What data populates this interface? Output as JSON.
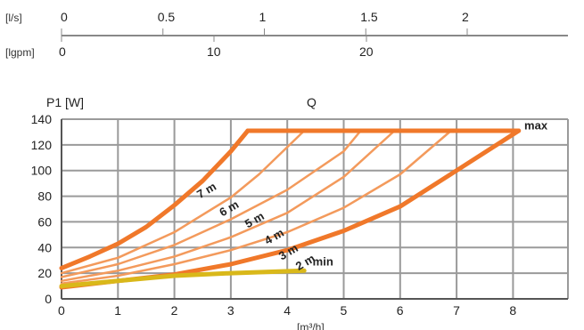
{
  "chart_data": {
    "type": "line",
    "top_scales": [
      {
        "unit": "[l/s]",
        "ticks": [
          0,
          0.5,
          1,
          1.5,
          2
        ],
        "tick_labels": [
          "0",
          "0.5",
          "1",
          "1.5",
          "2"
        ]
      },
      {
        "unit": "[lgpm]",
        "ticks": [
          0,
          10,
          20
        ],
        "tick_labels": [
          "0",
          "10",
          "20"
        ]
      }
    ],
    "ylabel": "P1 [W]",
    "xlabel_top": "Q",
    "xlabel_bottom": "[m³/h]",
    "xlim": [
      0,
      9
    ],
    "ylim": [
      0,
      140
    ],
    "x_ticks": [
      0,
      1,
      2,
      3,
      4,
      5,
      6,
      7,
      8
    ],
    "y_ticks": [
      0,
      20,
      40,
      60,
      80,
      100,
      120,
      140
    ],
    "grid": true,
    "colors": {
      "grid": "#9a9a9a",
      "curve_thick": "#f0782a",
      "curve_thin": "#f39a5c",
      "min_curve": "#d9b81a"
    },
    "series": [
      {
        "name": "7 m",
        "style": "thick",
        "label_xy": [
          2.45,
          78
        ],
        "x": [
          0,
          0.5,
          1,
          1.5,
          2,
          2.5,
          3,
          3.3
        ],
        "y": [
          24,
          33,
          43,
          56,
          73,
          92,
          115,
          131
        ]
      },
      {
        "name": "6 m",
        "style": "thin",
        "label_xy": [
          2.85,
          64
        ],
        "x": [
          0,
          1,
          2,
          3,
          3.5,
          4.3
        ],
        "y": [
          20,
          32,
          52,
          79,
          97,
          131
        ]
      },
      {
        "name": "5 m",
        "style": "thin",
        "label_xy": [
          3.3,
          55
        ],
        "x": [
          0,
          1,
          2,
          3,
          4,
          5,
          5.3
        ],
        "y": [
          17,
          27,
          42,
          62,
          85,
          115,
          131
        ]
      },
      {
        "name": "4 m",
        "style": "thin",
        "label_xy": [
          3.65,
          42
        ],
        "x": [
          0,
          1,
          2,
          3,
          4,
          5,
          5.9
        ],
        "y": [
          14,
          22,
          33,
          48,
          67,
          95,
          131
        ]
      },
      {
        "name": "3 m",
        "style": "thin",
        "label_xy": [
          3.9,
          30
        ],
        "x": [
          0,
          1,
          2,
          3,
          4,
          5,
          6,
          6.9
        ],
        "y": [
          12,
          18,
          27,
          38,
          52,
          71,
          97,
          131
        ]
      },
      {
        "name": "2 m",
        "style": "thick",
        "label_xy": [
          4.2,
          22
        ],
        "x": [
          0,
          1,
          2,
          3,
          4,
          5,
          6,
          7,
          8.1
        ],
        "y": [
          9,
          14,
          19,
          27,
          38,
          53,
          72,
          100,
          131
        ]
      },
      {
        "name": "max",
        "style": "thick",
        "label_xy": [
          8.2,
          132
        ],
        "x": [
          3.3,
          8.1
        ],
        "y": [
          131,
          131
        ]
      },
      {
        "name": "min",
        "style": "min",
        "label_xy": [
          4.45,
          26
        ],
        "x": [
          0,
          1,
          2,
          3,
          4.3
        ],
        "y": [
          10,
          14,
          18,
          20,
          22
        ]
      }
    ]
  }
}
